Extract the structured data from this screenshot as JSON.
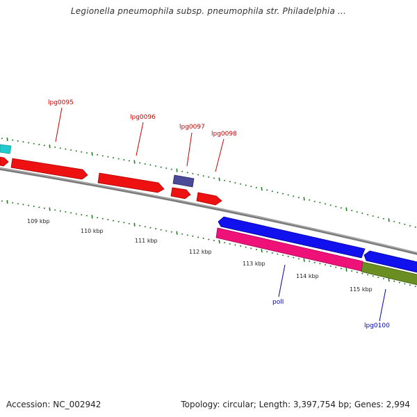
{
  "header": {
    "title": "Legionella pneumophila subsp. pneumophila str. Philadelphia ..."
  },
  "footer": {
    "accession": "Accession: NC_002942",
    "stats": "Topology: circular; Length: 3,397,754 bp; Genes: 2,994"
  },
  "colors": {
    "backbone": "#7a7a7a",
    "forward_gene": "#ee1111",
    "reverse_gene": "#1111ee",
    "rna_gene": "#ee1177",
    "olive_gene": "#6b8e23",
    "cyan_gene": "#22cccc",
    "slate_gene": "#4a4a99",
    "tick": "#1f7a1f",
    "label_red": "#cc0000",
    "label_blue": "#0000bb"
  },
  "tick_labels": [
    "109 kbp",
    "110 kbp",
    "111 kbp",
    "112 kbp",
    "113 kbp",
    "114 kbp",
    "115 kbp"
  ],
  "top_gene_labels": [
    "lpg0095",
    "lpg0096",
    "lpg0097",
    "lpg0098"
  ],
  "bottom_gene_labels": [
    "polI",
    "lpg0100"
  ]
}
